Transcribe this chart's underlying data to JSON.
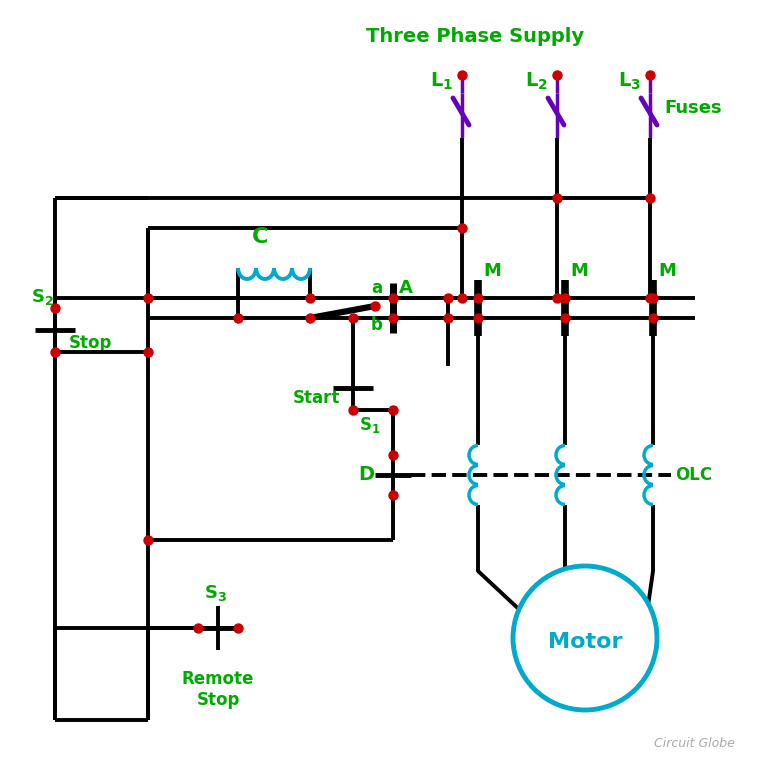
{
  "bg_color": "#ffffff",
  "wire_color": "#000000",
  "green": "#00aa00",
  "red": "#cc0000",
  "blue": "#00aacc",
  "purple": "#6600bb",
  "watermark": "Circuit Globe",
  "supply_label": "Three Phase Supply",
  "fuses_label": "Fuses",
  "motor_label": "Motor",
  "olc_label": "OLC",
  "stop_label": "Stop",
  "start_label": "Start",
  "remote_stop_label": "Remote\nStop",
  "C_label": "C",
  "D_label": "D",
  "A_label": "A",
  "a_label": "a",
  "b_label": "b",
  "S1_label": "S_1",
  "S2_label": "S_2",
  "S3_label": "S_3",
  "L1_label": "L_1",
  "L2_label": "L_2",
  "L3_label": "L_3",
  "M_label": "M"
}
